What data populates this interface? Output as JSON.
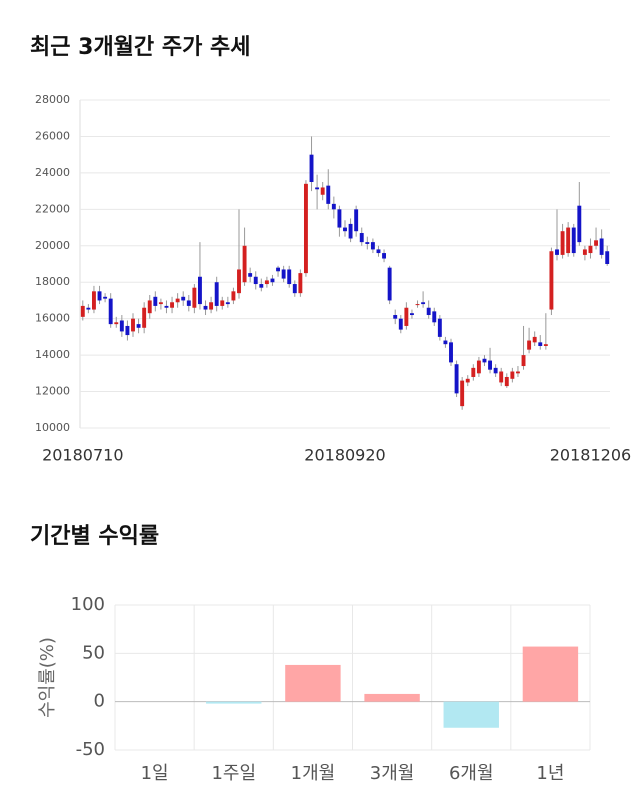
{
  "chart_data": [
    {
      "type": "candlestick",
      "title": "최근 3개월간 주가 추세",
      "categories": [
        "20180710",
        null,
        null,
        null,
        null,
        null,
        null,
        null,
        null,
        null,
        null,
        null,
        null,
        null,
        null,
        null,
        null,
        null,
        null,
        null,
        null,
        null,
        null,
        null,
        null,
        null,
        null,
        null,
        null,
        null,
        null,
        null,
        null,
        null,
        null,
        null,
        null,
        null,
        null,
        null,
        null,
        null,
        null,
        null,
        null,
        null,
        null,
        "20180920",
        null,
        null,
        null,
        null,
        null,
        null,
        null,
        null,
        null,
        null,
        null,
        null,
        null,
        null,
        null,
        null,
        null,
        null,
        null,
        null,
        null,
        null,
        null,
        null,
        null,
        null,
        null,
        null,
        null,
        null,
        null,
        null,
        null,
        null,
        null,
        null,
        null,
        null,
        null,
        null,
        null,
        null,
        null,
        "20181206",
        null,
        null,
        null
      ],
      "open": [
        16100,
        16600,
        16500,
        17500,
        17200,
        17100,
        15700,
        15900,
        15600,
        15300,
        15700,
        15500,
        16300,
        17200,
        16800,
        16700,
        16600,
        16900,
        17200,
        17000,
        16600,
        18300,
        16700,
        16500,
        18000,
        16700,
        16900,
        17000,
        17400,
        18000,
        18500,
        18300,
        17900,
        17900,
        18200,
        18800,
        18700,
        18700,
        17900,
        17400,
        18500,
        25000,
        23200,
        22800,
        23300,
        22300,
        22000,
        21000,
        21200,
        22000,
        20700,
        20200,
        20200,
        19800,
        19600,
        18800,
        16200,
        16000,
        15600,
        16300,
        16800,
        16900,
        16600,
        16400,
        16000,
        14800,
        14700,
        13500,
        11200,
        12500,
        12800,
        13000,
        13800,
        13700,
        13300,
        12500,
        12300,
        12700,
        13000,
        13400,
        14300,
        14700,
        14700,
        14500,
        16500,
        19800,
        19500,
        19600,
        21000,
        22200,
        19500,
        19600,
        20000,
        20400,
        19700
      ],
      "high": [
        17000,
        16800,
        17800,
        17800,
        17400,
        17400,
        16100,
        16200,
        15900,
        16300,
        16000,
        16900,
        17300,
        17500,
        17100,
        17000,
        17200,
        17400,
        17500,
        17300,
        17900,
        20200,
        17000,
        17200,
        18300,
        17200,
        17200,
        17700,
        22000,
        21000,
        18800,
        18600,
        18200,
        18300,
        18400,
        18900,
        18900,
        18900,
        18100,
        18700,
        23600,
        26000,
        23900,
        23500,
        24200,
        22700,
        22200,
        21400,
        21500,
        22200,
        21000,
        20500,
        20400,
        20000,
        19800,
        18900,
        16500,
        16200,
        16900,
        16500,
        17000,
        17500,
        17000,
        16600,
        16200,
        15000,
        14900,
        13700,
        12800,
        12900,
        13500,
        13900,
        14000,
        14400,
        13500,
        13300,
        13000,
        13300,
        13400,
        15600,
        15500,
        15300,
        15100,
        16300,
        19900,
        22000,
        21200,
        21300,
        21200,
        23500,
        20000,
        20400,
        21000,
        20900,
        20000
      ],
      "low": [
        15900,
        16300,
        16300,
        16800,
        16900,
        15500,
        15500,
        15000,
        14800,
        15000,
        15200,
        15200,
        16000,
        16400,
        16500,
        16300,
        16300,
        16600,
        16700,
        16400,
        16300,
        16500,
        16200,
        16300,
        16400,
        16500,
        16600,
        16800,
        17100,
        17800,
        18000,
        17600,
        17500,
        17700,
        17800,
        18300,
        18000,
        17700,
        17200,
        17200,
        18300,
        23000,
        22000,
        22500,
        22000,
        21500,
        20500,
        20500,
        20200,
        20500,
        20000,
        19800,
        19600,
        19400,
        19100,
        16800,
        15700,
        15200,
        15400,
        16000,
        16600,
        16600,
        16000,
        15600,
        14800,
        14400,
        13400,
        11700,
        11000,
        12300,
        12600,
        12800,
        13400,
        13000,
        12800,
        12300,
        12200,
        12500,
        12800,
        13200,
        14100,
        14500,
        14300,
        14300,
        16200,
        19200,
        19300,
        19400,
        19400,
        20000,
        19200,
        19300,
        19800,
        19300,
        18900
      ],
      "close": [
        16700,
        16500,
        17500,
        17000,
        17100,
        15700,
        15800,
        15300,
        15100,
        16000,
        15500,
        16600,
        17000,
        16700,
        16900,
        16600,
        16900,
        17100,
        17000,
        16700,
        17700,
        16800,
        16500,
        16900,
        16700,
        17000,
        16800,
        17500,
        18700,
        20000,
        18300,
        17900,
        17700,
        18100,
        18000,
        18600,
        18200,
        17900,
        17400,
        18500,
        23400,
        23500,
        23100,
        23200,
        22300,
        22000,
        21000,
        20800,
        20400,
        20800,
        20200,
        20100,
        19800,
        19600,
        19300,
        17000,
        16000,
        15400,
        16600,
        16200,
        16800,
        16800,
        16200,
        15800,
        15000,
        14600,
        13600,
        11900,
        12600,
        12700,
        13300,
        13700,
        13600,
        13200,
        13000,
        13100,
        12800,
        13100,
        13100,
        14000,
        14800,
        15000,
        14500,
        14600,
        19700,
        19500,
        20800,
        21000,
        19600,
        20200,
        19800,
        20000,
        20300,
        19500,
        19000
      ],
      "up_color": "#d42020",
      "down_color": "#1414c8",
      "wick_color": "#999999",
      "ylim": [
        10000,
        28000
      ],
      "yticks": [
        10000,
        12000,
        14000,
        16000,
        18000,
        20000,
        22000,
        24000,
        26000,
        28000
      ],
      "grid": true
    },
    {
      "type": "bar",
      "title": "기간별 수익률",
      "y_label": "수익률(%)",
      "categories": [
        "1일",
        "1주일",
        "1개월",
        "3개월",
        "6개월",
        "1년"
      ],
      "values": [
        0,
        -2,
        38,
        8,
        -27,
        57
      ],
      "positive_color": "#ffa6a6",
      "negative_color": "#b2e8f2",
      "ylim": [
        -50,
        100
      ],
      "yticks": [
        -50,
        0,
        50,
        100
      ],
      "grid": true
    }
  ]
}
